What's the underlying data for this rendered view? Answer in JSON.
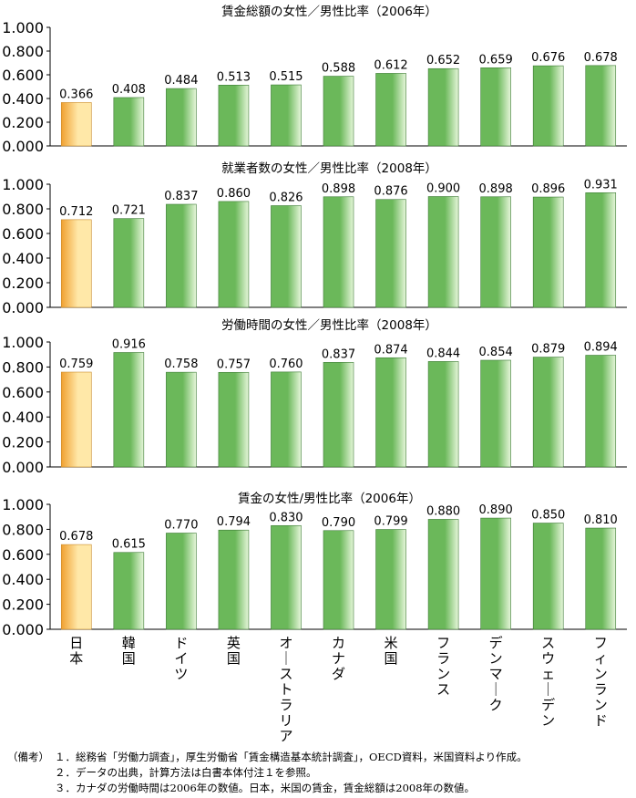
{
  "chart_data": [
    {
      "type": "bar",
      "title": "賃金総額の女性／男性比率（2006年）",
      "categories": [
        "日本",
        "韓国",
        "ドイツ",
        "英国",
        "オーストラリア",
        "カナダ",
        "米国",
        "フランス",
        "デンマーク",
        "スウェーデン",
        "フィンランド"
      ],
      "values": [
        0.366,
        0.408,
        0.484,
        0.513,
        0.515,
        0.588,
        0.612,
        0.652,
        0.659,
        0.676,
        0.678
      ],
      "data_labels": [
        "0.366",
        "0.408",
        "0.484",
        "0.513",
        "0.515",
        "0.588",
        "0.612",
        "0.652",
        "0.659",
        "0.676",
        "0.678"
      ],
      "ylim": [
        0,
        1.0
      ],
      "yticks": [
        "0.000",
        "0.200",
        "0.400",
        "0.600",
        "0.800",
        "1.000"
      ],
      "xlabel": "",
      "ylabel": "",
      "grid": false
    },
    {
      "type": "bar",
      "title": "就業者数の女性／男性比率（2008年）",
      "categories": [
        "日本",
        "韓国",
        "ドイツ",
        "英国",
        "オーストラリア",
        "カナダ",
        "米国",
        "フランス",
        "デンマーク",
        "スウェーデン",
        "フィンランド"
      ],
      "values": [
        0.712,
        0.721,
        0.837,
        0.86,
        0.826,
        0.898,
        0.876,
        0.9,
        0.898,
        0.896,
        0.931
      ],
      "data_labels": [
        "0.712",
        "0.721",
        "0.837",
        "0.860",
        "0.826",
        "0.898",
        "0.876",
        "0.900",
        "0.898",
        "0.896",
        "0.931"
      ],
      "ylim": [
        0,
        1.0
      ],
      "yticks": [
        "0.000",
        "0.200",
        "0.400",
        "0.600",
        "0.800",
        "1.000"
      ],
      "xlabel": "",
      "ylabel": "",
      "grid": false
    },
    {
      "type": "bar",
      "title": "労働時間の女性／男性比率（2008年）",
      "categories": [
        "日本",
        "韓国",
        "ドイツ",
        "英国",
        "オーストラリア",
        "カナダ",
        "米国",
        "フランス",
        "デンマーク",
        "スウェーデン",
        "フィンランド"
      ],
      "values": [
        0.759,
        0.916,
        0.758,
        0.757,
        0.76,
        0.837,
        0.874,
        0.844,
        0.854,
        0.879,
        0.894
      ],
      "data_labels": [
        "0.759",
        "0.916",
        "0.758",
        "0.757",
        "0.760",
        "0.837",
        "0.874",
        "0.844",
        "0.854",
        "0.879",
        "0.894"
      ],
      "ylim": [
        0,
        1.0
      ],
      "yticks": [
        "0.000",
        "0.200",
        "0.400",
        "0.600",
        "0.800",
        "1.000"
      ],
      "xlabel": "",
      "ylabel": "",
      "grid": false
    },
    {
      "type": "bar",
      "title": "賃金の女性/男性比率（2006年）",
      "categories": [
        "日本",
        "韓国",
        "ドイツ",
        "英国",
        "オーストラリア",
        "カナダ",
        "米国",
        "フランス",
        "デンマーク",
        "スウェーデン",
        "フィンランド"
      ],
      "values": [
        0.678,
        0.615,
        0.77,
        0.794,
        0.83,
        0.79,
        0.799,
        0.88,
        0.89,
        0.85,
        0.81
      ],
      "data_labels": [
        "0.678",
        "0.615",
        "0.770",
        "0.794",
        "0.830",
        "0.790",
        "0.799",
        "0.880",
        "0.890",
        "0.850",
        "0.810"
      ],
      "ylim": [
        0,
        1.0
      ],
      "yticks": [
        "0.000",
        "0.200",
        "0.400",
        "0.600",
        "0.800",
        "1.000"
      ],
      "xlabel": "",
      "ylabel": "",
      "grid": false
    }
  ],
  "colors": {
    "japan_bar_dark": "#f0a030",
    "japan_bar_light": "#ffe8a8",
    "other_bar_dark": "#6bb85a",
    "other_bar_light": "#e6f6da",
    "bar_border": "#3c7a34",
    "axis": "#000000"
  },
  "notes": {
    "label": "（備考）",
    "items": [
      "１．総務省「労働力調査」，厚生労働省「賃金構造基本統計調査」，OECD資料，米国資料より作成。",
      "２．データの出典，計算方法は白書本体付注１を参照。",
      "３．カナダの労働時間は2006年の数値。日本，米国の賃金，賃金総額は2008年の数値。"
    ]
  }
}
